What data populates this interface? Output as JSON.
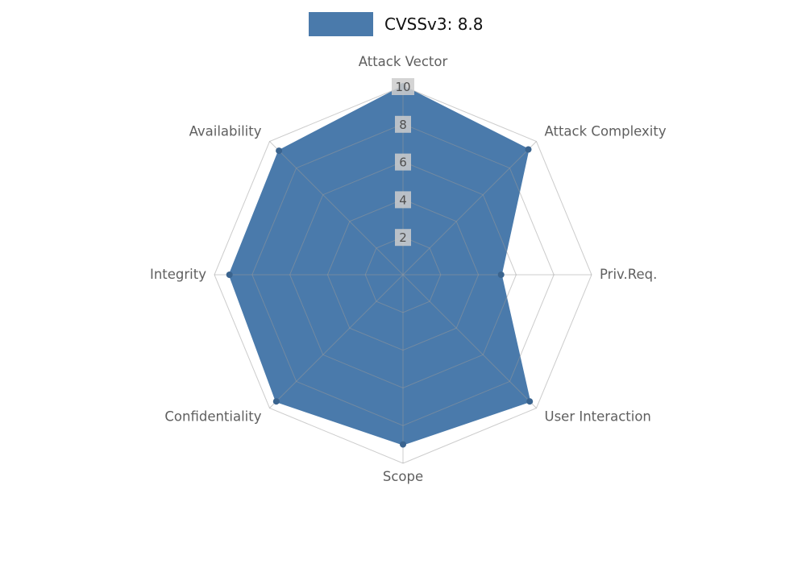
{
  "legend": {
    "label": "CVSSv3: 8.8"
  },
  "chart_data": {
    "type": "radar",
    "title": "CVSSv3: 8.8",
    "categories": [
      "Attack Vector",
      "Attack Complexity",
      "Priv.Req.",
      "User Interaction",
      "Scope",
      "Confidentiality",
      "Integrity",
      "Availability"
    ],
    "series": [
      {
        "name": "CVSSv3: 8.8",
        "values": [
          10,
          9.4,
          5.2,
          9.5,
          9.0,
          9.5,
          9.2,
          9.3
        ]
      }
    ],
    "rmin": 0,
    "rmax": 10,
    "ticks": [
      2,
      4,
      6,
      8,
      10
    ],
    "grid": true,
    "legend_position": "top",
    "colors": {
      "fill": "#4a7aab",
      "marker": "#3a648f",
      "grid": "#9a9a9a",
      "axis_label": "#5f5f5f",
      "tick_text": "#4f4f4f",
      "tick_bg": "#cccccc"
    }
  }
}
